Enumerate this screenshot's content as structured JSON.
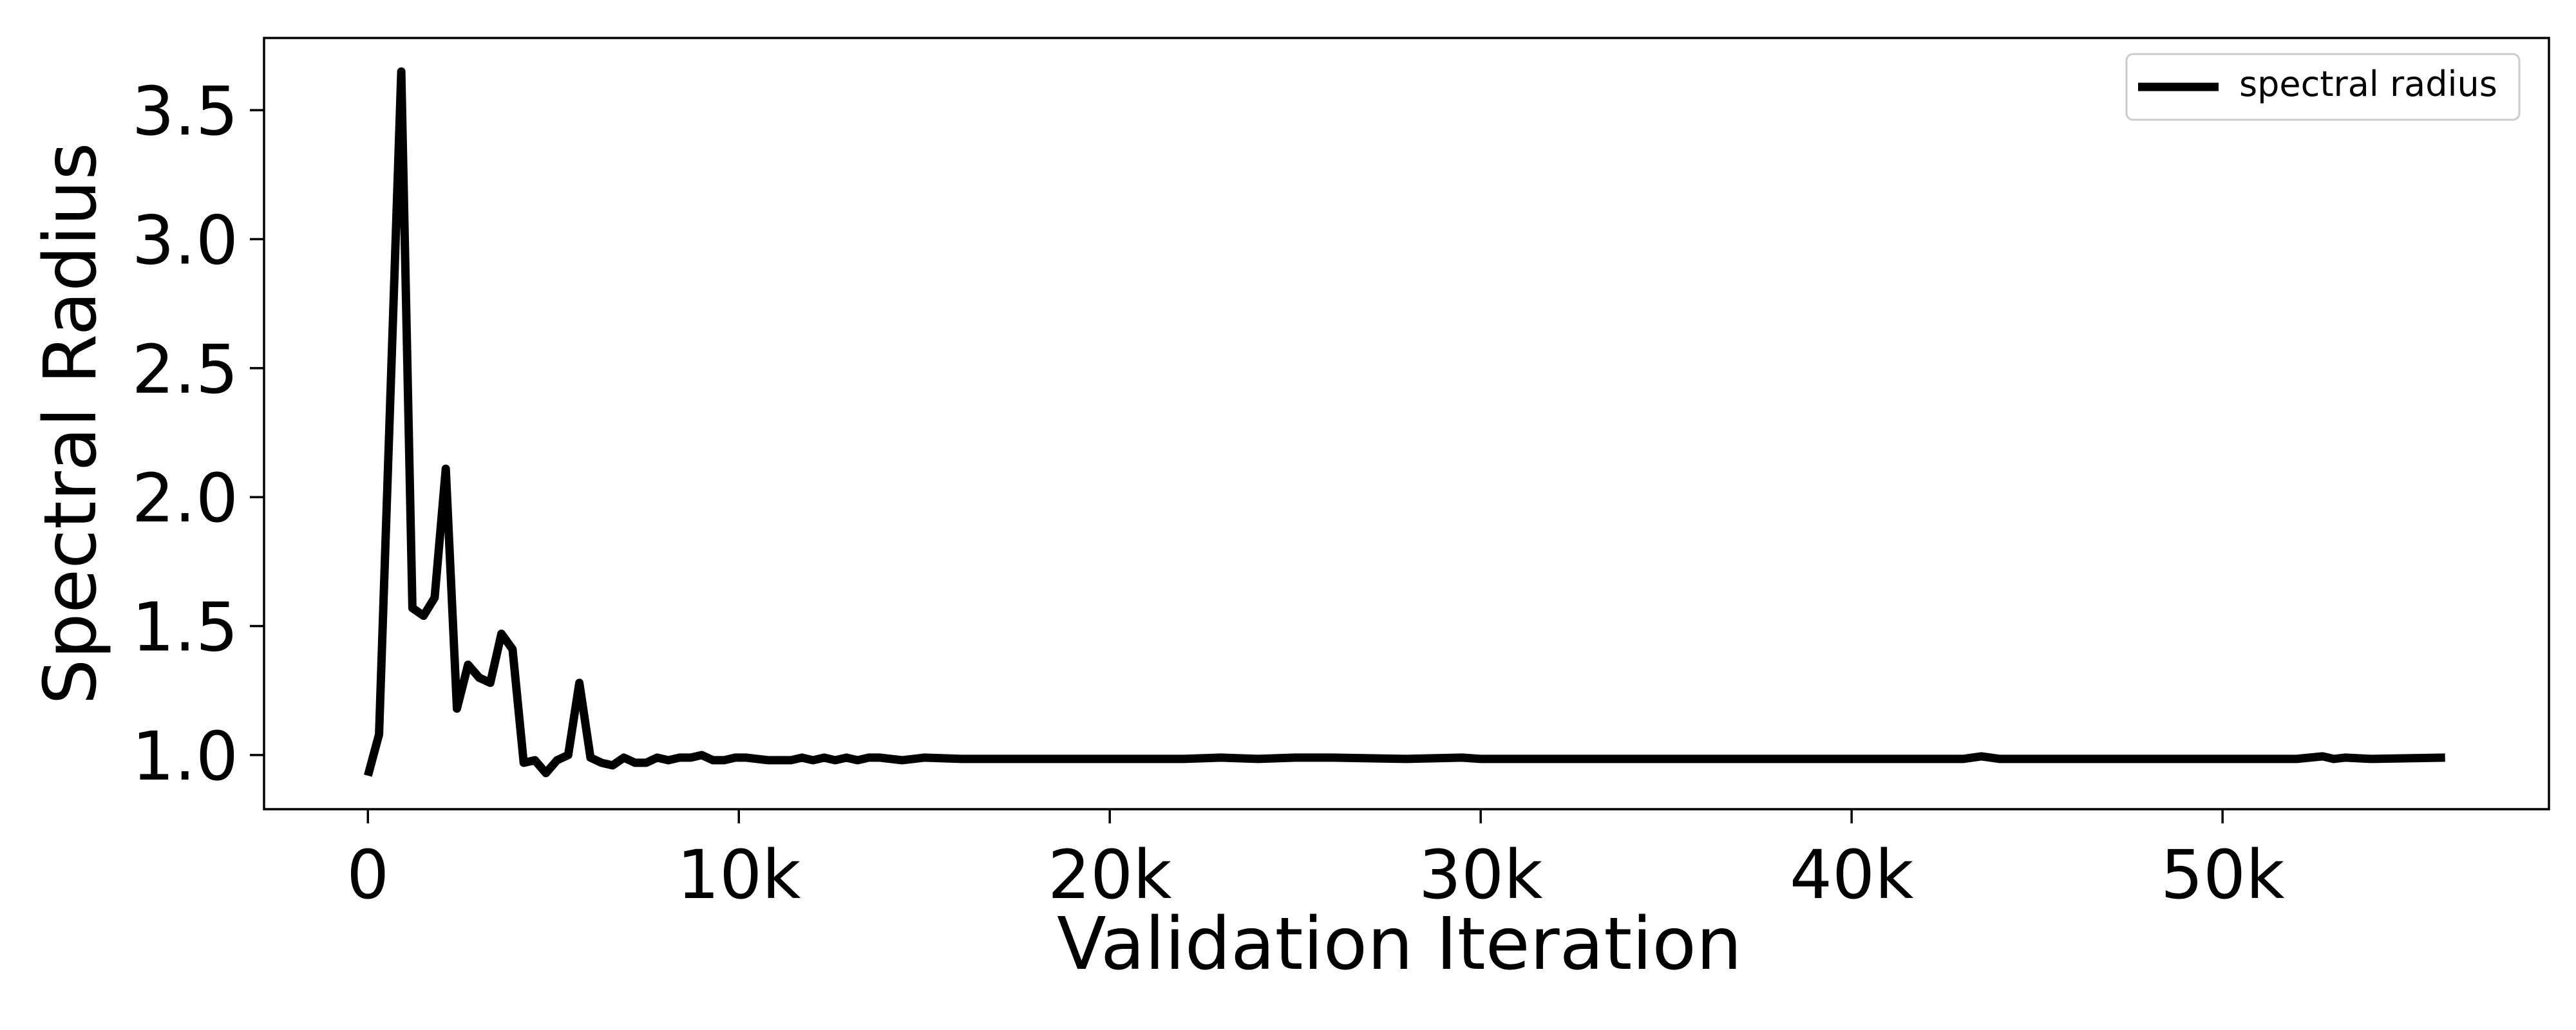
{
  "chart_data": {
    "type": "line",
    "title": "",
    "xlabel": "Validation Iteration",
    "ylabel": "Spectral Radius",
    "xlim": [
      -2800,
      58800
    ],
    "ylim": [
      0.79,
      3.78
    ],
    "xticks": [
      0,
      10000,
      20000,
      30000,
      40000,
      50000
    ],
    "xtick_labels": [
      "0",
      "10k",
      "20k",
      "30k",
      "40k",
      "50k"
    ],
    "yticks": [
      1.0,
      1.5,
      2.0,
      2.5,
      3.0,
      3.5
    ],
    "ytick_labels": [
      "1.0",
      "1.5",
      "2.0",
      "2.5",
      "3.0",
      "3.5"
    ],
    "grid": false,
    "legend": {
      "position": "top-right"
    },
    "series": [
      {
        "name": "spectral radius",
        "color": "#000000",
        "x": [
          0,
          300,
          900,
          1200,
          1500,
          1800,
          2100,
          2400,
          2700,
          3000,
          3300,
          3600,
          3900,
          4200,
          4500,
          4800,
          5100,
          5400,
          5700,
          6000,
          6300,
          6600,
          6900,
          7200,
          7500,
          7800,
          8100,
          8400,
          8700,
          9000,
          9300,
          9600,
          9900,
          10200,
          10800,
          11400,
          11700,
          12000,
          12300,
          12600,
          12900,
          13200,
          13500,
          13800,
          14400,
          15000,
          16000,
          18000,
          20000,
          22000,
          23000,
          24000,
          25000,
          26000,
          28000,
          29500,
          30000,
          32000,
          34000,
          36000,
          38000,
          40000,
          42000,
          43000,
          43500,
          44000,
          46000,
          48000,
          50000,
          52000,
          52700,
          53000,
          53300,
          54000,
          56000
        ],
        "y": [
          0.92,
          1.08,
          3.65,
          1.57,
          1.54,
          1.61,
          2.11,
          1.18,
          1.35,
          1.3,
          1.28,
          1.47,
          1.41,
          0.97,
          0.98,
          0.93,
          0.98,
          1.0,
          1.28,
          0.99,
          0.97,
          0.96,
          0.99,
          0.97,
          0.97,
          0.99,
          0.98,
          0.99,
          0.99,
          1.0,
          0.98,
          0.98,
          0.99,
          0.99,
          0.98,
          0.98,
          0.99,
          0.98,
          0.99,
          0.98,
          0.99,
          0.98,
          0.99,
          0.99,
          0.98,
          0.99,
          0.985,
          0.985,
          0.985,
          0.985,
          0.99,
          0.985,
          0.99,
          0.99,
          0.985,
          0.99,
          0.985,
          0.985,
          0.985,
          0.985,
          0.985,
          0.985,
          0.985,
          0.985,
          0.995,
          0.985,
          0.985,
          0.985,
          0.985,
          0.985,
          0.995,
          0.985,
          0.99,
          0.985,
          0.99
        ]
      }
    ]
  }
}
